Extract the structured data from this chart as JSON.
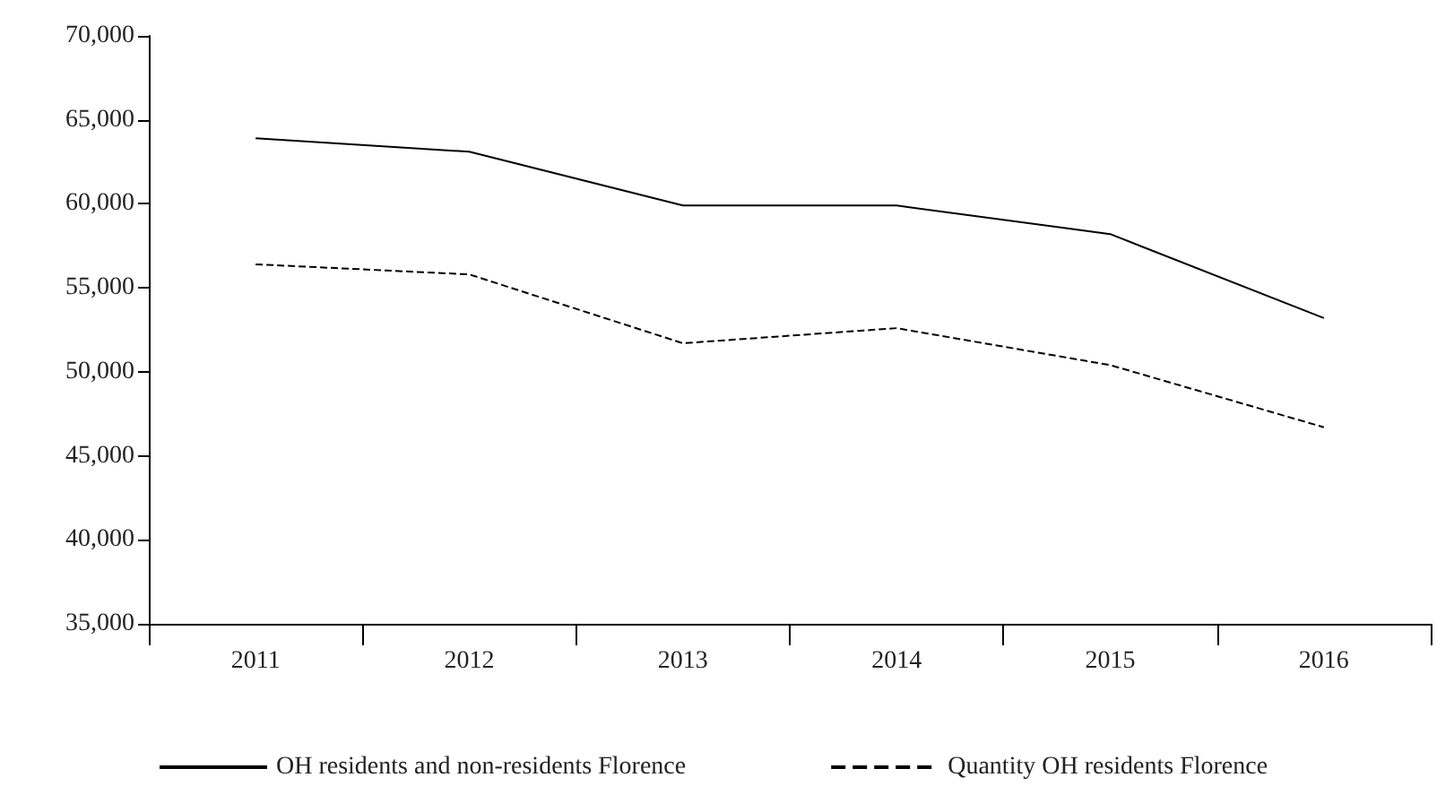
{
  "chart_data": {
    "type": "line",
    "categories": [
      "2011",
      "2012",
      "2013",
      "2014",
      "2015",
      "2016"
    ],
    "series": [
      {
        "name": "OH residents and non-residents Florence",
        "color": "#000000",
        "line_style": "solid",
        "values": [
          63900,
          63100,
          59900,
          59900,
          58200,
          53200
        ]
      },
      {
        "name": "Quantity OH residents Florence",
        "color": "#000000",
        "line_style": "dashed",
        "values": [
          56400,
          55800,
          51700,
          52600,
          50400,
          46700
        ]
      }
    ],
    "ylim": [
      35000,
      70000
    ],
    "yticks": [
      {
        "value": 35000,
        "label": "35,000"
      },
      {
        "value": 40000,
        "label": "40,000"
      },
      {
        "value": 45000,
        "label": "45,000"
      },
      {
        "value": 50000,
        "label": "50,000"
      },
      {
        "value": 55000,
        "label": "55,000"
      },
      {
        "value": 60000,
        "label": "60,000"
      },
      {
        "value": 65000,
        "label": "65,000"
      },
      {
        "value": 70000,
        "label": "70,000"
      }
    ],
    "grid": false,
    "legend": "bottom",
    "marker": "none"
  }
}
